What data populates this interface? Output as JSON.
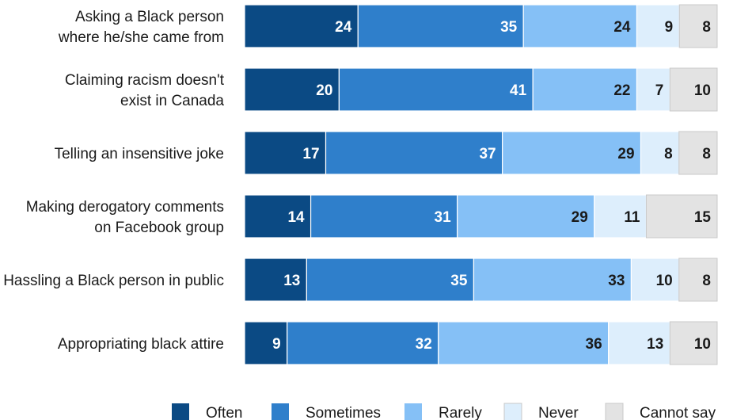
{
  "chart_data": {
    "type": "bar",
    "orientation": "horizontal",
    "stacked": true,
    "categories": [
      [
        "Asking a Black person",
        "where he/she came from"
      ],
      [
        "Claiming racism doesn't",
        "exist in Canada"
      ],
      [
        "Telling an insensitive joke"
      ],
      [
        "Making derogatory comments",
        "on Facebook group"
      ],
      [
        "Hassling a Black person in public"
      ],
      [
        "Appropriating black attire"
      ]
    ],
    "series": [
      {
        "name": "Often",
        "color": "#0b4a84",
        "label_color": "#ffffff",
        "values": [
          24,
          20,
          17,
          14,
          13,
          9
        ]
      },
      {
        "name": "Sometimes",
        "color": "#2f7fcb",
        "label_color": "#ffffff",
        "values": [
          35,
          41,
          37,
          31,
          35,
          32
        ]
      },
      {
        "name": "Rarely",
        "color": "#85c0f6",
        "label_color": "#1a1a1a",
        "values": [
          24,
          22,
          29,
          29,
          33,
          36
        ]
      },
      {
        "name": "Never",
        "color": "#ddeefc",
        "label_color": "#1a1a1a",
        "values": [
          9,
          7,
          8,
          11,
          10,
          13
        ]
      },
      {
        "name": "Cannot say",
        "color": "#e3e3e3",
        "label_color": "#1a1a1a",
        "values": [
          8,
          10,
          8,
          15,
          8,
          10
        ]
      }
    ],
    "legend_position": "bottom-right",
    "grid": false
  }
}
